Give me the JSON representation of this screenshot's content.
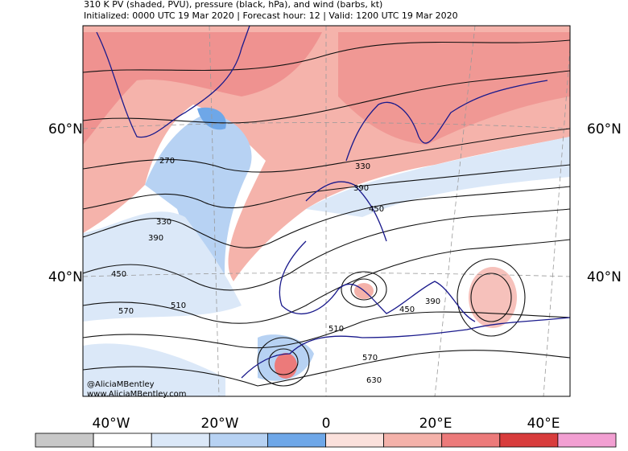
{
  "header": {
    "title": "310 K PV (shaded, PVU), pressure (black, hPa), and wind (barbs, kt)",
    "subtitle": "Initialized: 0000 UTC 19 Mar 2020 | Forecast hour: 12 | Valid: 1200 UTC 19 Mar 2020"
  },
  "map": {
    "lat_labels": [
      "60°N",
      "40°N"
    ],
    "lon_labels": [
      "40°W",
      "20°W",
      "0",
      "20°E",
      "40°E"
    ],
    "contour_labels": [
      "270",
      "330",
      "390",
      "450",
      "570",
      "510",
      "330",
      "390",
      "450",
      "510",
      "450",
      "390",
      "570",
      "630"
    ],
    "credits": [
      "@AliciaMBentley",
      "www.AliciaMBentley.com"
    ]
  },
  "colorbar": {
    "colors": [
      "#c8c8c8",
      "#ffffff",
      "#dbe8f8",
      "#b7d2f3",
      "#6ea7e8",
      "#fbe1dc",
      "#f4b2aa",
      "#ec7a7a",
      "#d83c3c",
      "#f29fd2"
    ]
  }
}
